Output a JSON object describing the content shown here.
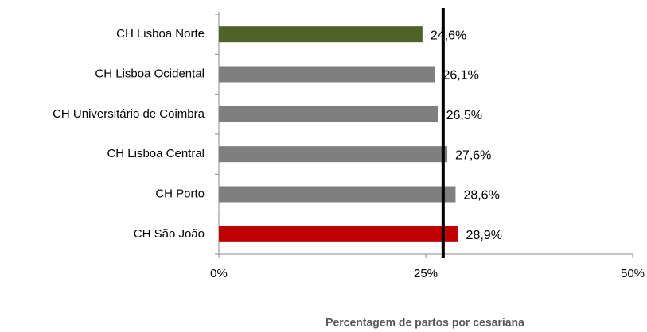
{
  "chart_data": {
    "type": "barh",
    "categories": [
      "CH Lisboa Norte",
      "CH Lisboa Ocidental",
      "CH Universitário de Coimbra",
      "CH Lisboa Central",
      "CH Porto",
      "CH São João"
    ],
    "values": [
      24.6,
      26.1,
      26.5,
      27.6,
      28.6,
      28.9
    ],
    "value_labels": [
      "24,6%",
      "26,1%",
      "26,5%",
      "27,6%",
      "28,6%",
      "28,9%"
    ],
    "colors": [
      "#4f6228",
      "#7f7f7f",
      "#7f7f7f",
      "#7f7f7f",
      "#7f7f7f",
      "#c00000"
    ],
    "reference_line": 27.1,
    "xlim": [
      0,
      50
    ],
    "xticks": [
      {
        "value": 0,
        "label": "0%"
      },
      {
        "value": 25,
        "label": "25%"
      },
      {
        "value": 50,
        "label": "50%"
      }
    ],
    "xlabel": "Percentagem de partos por cesariana"
  }
}
